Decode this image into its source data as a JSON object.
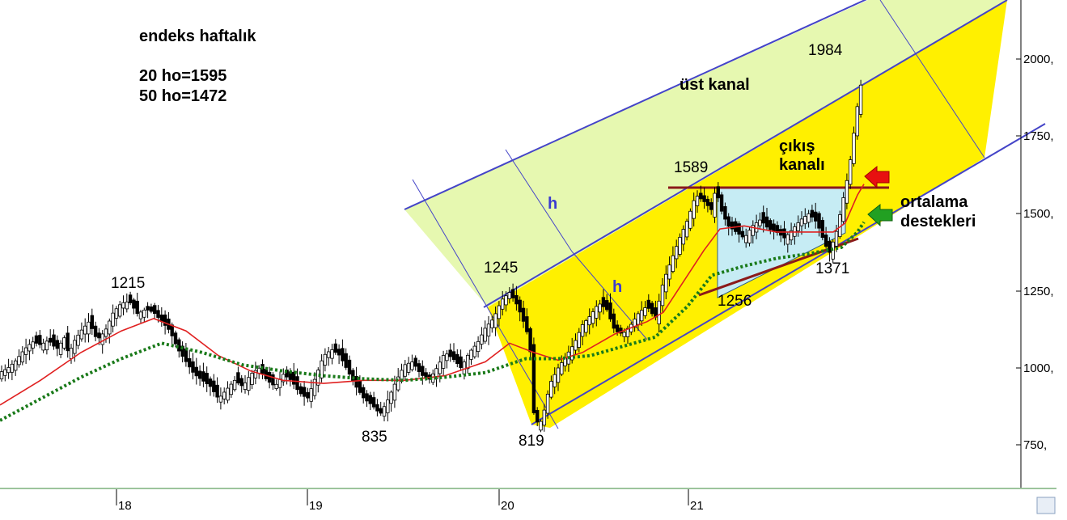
{
  "chart_data": {
    "type": "candlestick",
    "title": "endeks haftalık",
    "info_lines": [
      "20 ho=1595",
      "50 ho=1472"
    ],
    "x_ticks": [
      "18",
      "19",
      "20",
      "21"
    ],
    "y_ticks": [
      "750,",
      "1000,",
      "1250,",
      "1500,",
      "1750,",
      "2000,"
    ],
    "ylim": [
      625,
      2200
    ],
    "price_labels": [
      "1215",
      "835",
      "819",
      "1245",
      "1589",
      "1256",
      "1371",
      "1984"
    ],
    "annotations": [
      "üst kanal",
      "çıkış",
      "kanalı",
      "ortalama",
      "destekleri",
      "h",
      "h"
    ],
    "series": [
      {
        "name": "20 ho",
        "color": "#e02020"
      },
      {
        "name": "50 ho",
        "color": "#1a7a1a"
      }
    ],
    "close_path": [
      [
        0,
        985
      ],
      [
        10,
        1000
      ],
      [
        20,
        1025
      ],
      [
        30,
        1060
      ],
      [
        40,
        1085
      ],
      [
        50,
        1075
      ],
      [
        60,
        1090
      ],
      [
        70,
        1060
      ],
      [
        80,
        1100
      ],
      [
        85,
        1040
      ],
      [
        90,
        1080
      ],
      [
        100,
        1120
      ],
      [
        110,
        1150
      ],
      [
        120,
        1090
      ],
      [
        130,
        1120
      ],
      [
        140,
        1180
      ],
      [
        150,
        1210
      ],
      [
        160,
        1215
      ],
      [
        170,
        1175
      ],
      [
        180,
        1190
      ],
      [
        190,
        1180
      ],
      [
        200,
        1150
      ],
      [
        210,
        1120
      ],
      [
        220,
        1060
      ],
      [
        230,
        1020
      ],
      [
        240,
        980
      ],
      [
        250,
        960
      ],
      [
        260,
        940
      ],
      [
        270,
        900
      ],
      [
        280,
        930
      ],
      [
        290,
        960
      ],
      [
        300,
        940
      ],
      [
        310,
        980
      ],
      [
        320,
        1000
      ],
      [
        330,
        960
      ],
      [
        340,
        940
      ],
      [
        350,
        980
      ],
      [
        360,
        960
      ],
      [
        370,
        920
      ],
      [
        380,
        900
      ],
      [
        390,
        970
      ],
      [
        400,
        1040
      ],
      [
        410,
        1060
      ],
      [
        420,
        1040
      ],
      [
        430,
        990
      ],
      [
        440,
        940
      ],
      [
        450,
        900
      ],
      [
        460,
        880
      ],
      [
        470,
        850
      ],
      [
        480,
        900
      ],
      [
        490,
        960
      ],
      [
        500,
        1010
      ],
      [
        510,
        1020
      ],
      [
        520,
        980
      ],
      [
        530,
        960
      ],
      [
        540,
        1000
      ],
      [
        550,
        1050
      ],
      [
        560,
        1030
      ],
      [
        570,
        1000
      ],
      [
        580,
        1050
      ],
      [
        590,
        1080
      ],
      [
        600,
        1130
      ],
      [
        610,
        1160
      ],
      [
        620,
        1220
      ],
      [
        630,
        1245
      ],
      [
        640,
        1200
      ],
      [
        650,
        1130
      ],
      [
        655,
        1080
      ],
      [
        660,
        850
      ],
      [
        665,
        820
      ],
      [
        670,
        830
      ],
      [
        680,
        950
      ],
      [
        690,
        1000
      ],
      [
        700,
        1040
      ],
      [
        710,
        1080
      ],
      [
        720,
        1140
      ],
      [
        730,
        1170
      ],
      [
        740,
        1210
      ],
      [
        750,
        1190
      ],
      [
        760,
        1120
      ],
      [
        770,
        1110
      ],
      [
        780,
        1140
      ],
      [
        790,
        1180
      ],
      [
        800,
        1200
      ],
      [
        810,
        1160
      ],
      [
        820,
        1280
      ],
      [
        830,
        1350
      ],
      [
        840,
        1420
      ],
      [
        850,
        1480
      ],
      [
        860,
        1560
      ],
      [
        870,
        1540
      ],
      [
        880,
        1510
      ],
      [
        885,
        1589
      ],
      [
        890,
        1520
      ],
      [
        900,
        1460
      ],
      [
        910,
        1440
      ],
      [
        920,
        1420
      ],
      [
        930,
        1460
      ],
      [
        940,
        1480
      ],
      [
        950,
        1450
      ],
      [
        960,
        1440
      ],
      [
        970,
        1420
      ],
      [
        980,
        1450
      ],
      [
        990,
        1480
      ],
      [
        1000,
        1500
      ],
      [
        1010,
        1470
      ],
      [
        1020,
        1400
      ],
      [
        1025,
        1371
      ],
      [
        1030,
        1410
      ],
      [
        1035,
        1450
      ],
      [
        1040,
        1520
      ],
      [
        1045,
        1580
      ],
      [
        1050,
        1650
      ],
      [
        1055,
        1750
      ],
      [
        1060,
        1850
      ],
      [
        1065,
        1930
      ],
      [
        1068,
        1984
      ]
    ],
    "ma20": [
      [
        0,
        880
      ],
      [
        50,
        960
      ],
      [
        100,
        1050
      ],
      [
        150,
        1120
      ],
      [
        190,
        1160
      ],
      [
        230,
        1120
      ],
      [
        270,
        1040
      ],
      [
        310,
        990
      ],
      [
        350,
        960
      ],
      [
        400,
        950
      ],
      [
        450,
        960
      ],
      [
        500,
        960
      ],
      [
        550,
        975
      ],
      [
        600,
        1020
      ],
      [
        630,
        1080
      ],
      [
        660,
        1050
      ],
      [
        690,
        1025
      ],
      [
        720,
        1050
      ],
      [
        760,
        1110
      ],
      [
        800,
        1150
      ],
      [
        820,
        1180
      ],
      [
        850,
        1300
      ],
      [
        870,
        1380
      ],
      [
        890,
        1450
      ],
      [
        920,
        1460
      ],
      [
        960,
        1440
      ],
      [
        1000,
        1440
      ],
      [
        1030,
        1440
      ],
      [
        1045,
        1470
      ],
      [
        1060,
        1560
      ],
      [
        1068,
        1595
      ]
    ],
    "ma50": [
      [
        0,
        830
      ],
      [
        50,
        900
      ],
      [
        100,
        970
      ],
      [
        150,
        1030
      ],
      [
        200,
        1080
      ],
      [
        250,
        1050
      ],
      [
        300,
        1010
      ],
      [
        350,
        990
      ],
      [
        400,
        975
      ],
      [
        450,
        965
      ],
      [
        500,
        960
      ],
      [
        550,
        970
      ],
      [
        600,
        985
      ],
      [
        650,
        1030
      ],
      [
        690,
        1030
      ],
      [
        730,
        1040
      ],
      [
        770,
        1070
      ],
      [
        810,
        1100
      ],
      [
        850,
        1200
      ],
      [
        880,
        1300
      ],
      [
        920,
        1330
      ],
      [
        960,
        1355
      ],
      [
        1000,
        1370
      ],
      [
        1040,
        1390
      ],
      [
        1060,
        1440
      ],
      [
        1068,
        1472
      ]
    ]
  }
}
